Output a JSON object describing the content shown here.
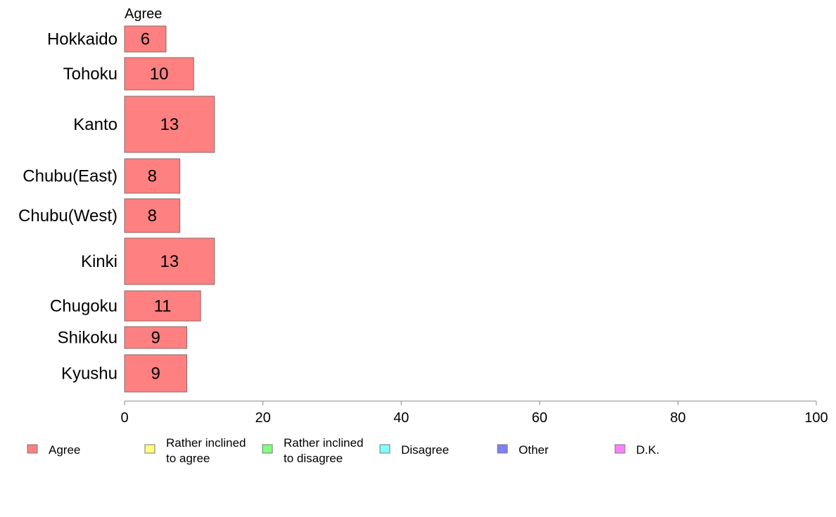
{
  "chart_data": {
    "type": "bar",
    "orientation": "horizontal",
    "column_header": "Agree",
    "categories": [
      "Hokkaido",
      "Tohoku",
      "Kanto",
      "Chubu(East)",
      "Chubu(West)",
      "Kinki",
      "Chugoku",
      "Shikoku",
      "Kyushu"
    ],
    "series": [
      {
        "name": "Agree",
        "values": [
          6,
          10,
          13,
          8,
          8,
          13,
          11,
          9,
          9
        ],
        "color": "#ff8080"
      }
    ],
    "xlim": [
      0,
      100
    ],
    "xticks": [
      "0",
      "20",
      "40",
      "60",
      "80",
      "100"
    ],
    "grid": false,
    "legend_position": "bottom",
    "legend": [
      {
        "lines": [
          "Agree"
        ],
        "color": "#ff8080"
      },
      {
        "lines": [
          "Rather inclined",
          "to agree"
        ],
        "color": "#ffff80"
      },
      {
        "lines": [
          "Rather inclined",
          "to disagree"
        ],
        "color": "#80ff80"
      },
      {
        "lines": [
          "Disagree"
        ],
        "color": "#80ffff"
      },
      {
        "lines": [
          "Other"
        ],
        "color": "#8080ff"
      },
      {
        "lines": [
          "D.K."
        ],
        "color": "#ff80ff"
      }
    ]
  }
}
